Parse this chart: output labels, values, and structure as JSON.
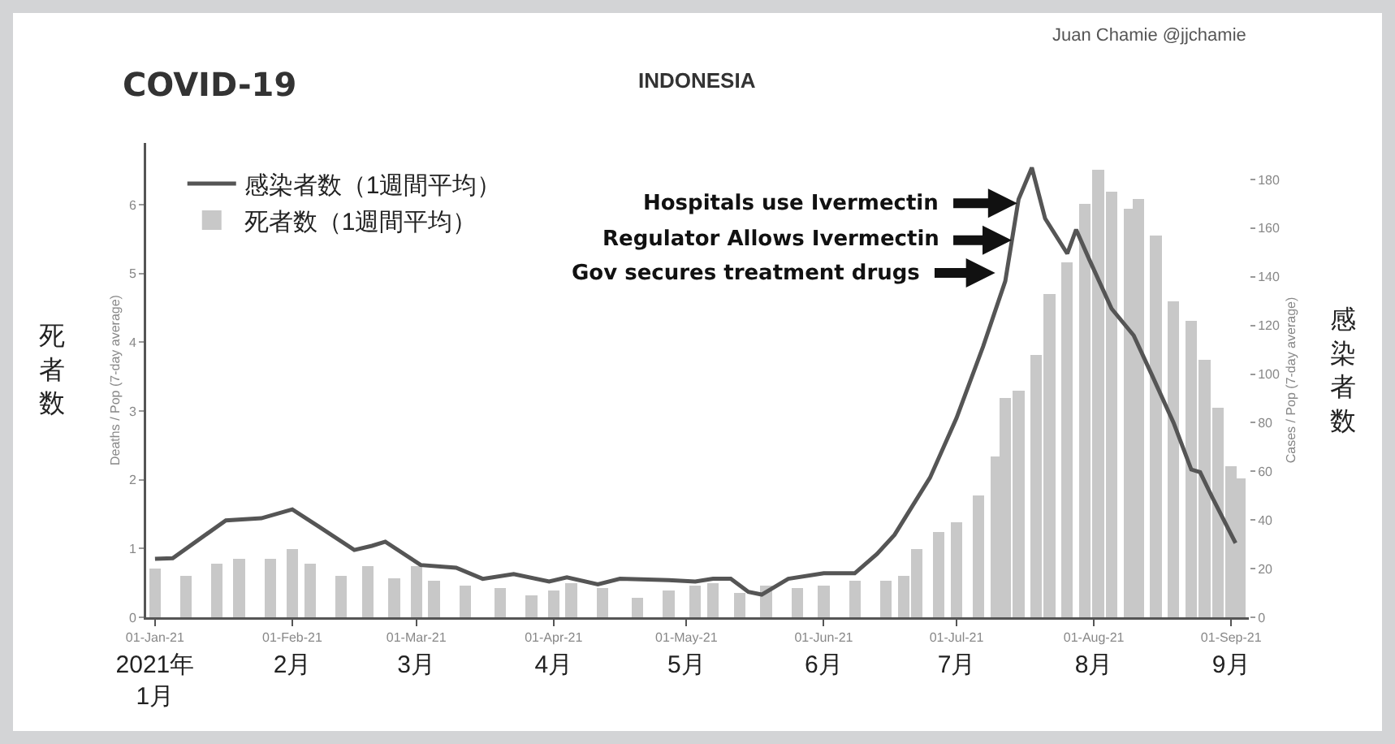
{
  "chart_data": {
    "type": "bar",
    "title": "COVID-19",
    "subtitle": "INDONESIA",
    "ylabel": "Deaths / Pop (7-day average)",
    "y2label": "Cases / Pop (7-day average)",
    "annotations": [
      "Juan Chamie @jjchamie",
      "死者数",
      "感染者数",
      "Hospitals use Ivermectin",
      "Regulator Allows Ivermectin",
      "Gov secures treatment drugs"
    ],
    "xlim": [
      "2020-12-30",
      "2021-09-05"
    ],
    "xticks": [
      {
        "value": "2021-01-01",
        "label": "01-Jan-21"
      },
      {
        "value": "2021-02-01",
        "label": "01-Feb-21"
      },
      {
        "value": "2021-03-01",
        "label": "01-Mar-21"
      },
      {
        "value": "2021-04-01",
        "label": "01-Apr-21"
      },
      {
        "value": "2021-05-01",
        "label": "01-May-21"
      },
      {
        "value": "2021-06-01",
        "label": "01-Jun-21"
      },
      {
        "value": "2021-07-01",
        "label": "01-Jul-21"
      },
      {
        "value": "2021-08-01",
        "label": "01-Aug-21"
      },
      {
        "value": "2021-09-01",
        "label": "01-Sep-21"
      }
    ],
    "x2lim": [
      "2020-12-30",
      "2021-09-05"
    ],
    "x2ticks": [
      {
        "value": "2021-01-01",
        "label": "2021年\n1月"
      },
      {
        "value": "2021-02-01",
        "label": "2月"
      },
      {
        "value": "2021-03-01",
        "label": "3月"
      },
      {
        "value": "2021-04-01",
        "label": "4月"
      },
      {
        "value": "2021-05-01",
        "label": "5月"
      },
      {
        "value": "2021-06-01",
        "label": "6月"
      },
      {
        "value": "2021-07-01",
        "label": "7月"
      },
      {
        "value": "2021-08-01",
        "label": "8月"
      },
      {
        "value": "2021-09-01",
        "label": "9月"
      }
    ],
    "ylim": [
      0,
      6.9
    ],
    "yticks": [
      0,
      1,
      2,
      3,
      4,
      5,
      6
    ],
    "y2lim": [
      0,
      195
    ],
    "y2ticks": [
      0,
      20,
      40,
      60,
      80,
      100,
      120,
      140,
      160,
      180
    ],
    "grid": false,
    "legend": "top left",
    "series": [
      {
        "type": "line",
        "name": "感染者数（1週間平均）",
        "color": "#555555",
        "x": [
          "2021-01-01",
          "2021-01-05",
          "2021-01-17",
          "2021-01-25",
          "2021-02-01",
          "2021-02-07",
          "2021-02-15",
          "2021-02-19",
          "2021-02-22",
          "2021-03-02",
          "2021-03-10",
          "2021-03-16",
          "2021-03-23",
          "2021-03-31",
          "2021-04-04",
          "2021-04-11",
          "2021-04-16",
          "2021-04-27",
          "2021-05-03",
          "2021-05-07",
          "2021-05-11",
          "2021-05-15",
          "2021-05-18",
          "2021-05-24",
          "2021-06-01",
          "2021-06-08",
          "2021-06-13",
          "2021-06-17",
          "2021-06-25",
          "2021-07-01",
          "2021-07-07",
          "2021-07-12",
          "2021-07-15",
          "2021-07-18",
          "2021-07-21",
          "2021-07-26",
          "2021-07-28",
          "2021-07-31",
          "2021-08-05",
          "2021-08-10",
          "2021-08-14",
          "2021-08-19",
          "2021-08-23",
          "2021-08-25",
          "2021-08-28",
          "2021-09-02"
        ],
        "values": [
          0.85,
          0.86,
          1.41,
          1.44,
          1.57,
          1.32,
          0.98,
          1.04,
          1.1,
          0.76,
          0.72,
          0.56,
          0.63,
          0.52,
          0.58,
          0.48,
          0.56,
          0.54,
          0.52,
          0.56,
          0.56,
          0.37,
          0.33,
          0.56,
          0.64,
          0.64,
          0.92,
          1.2,
          2.03,
          2.9,
          3.94,
          4.89,
          6.08,
          6.54,
          5.8,
          5.29,
          5.64,
          5.2,
          4.49,
          4.1,
          3.54,
          2.83,
          2.15,
          2.11,
          1.71,
          1.08
        ]
      },
      {
        "name": "死者数（1週間平均）",
        "color": "#c8c8c8",
        "axis": "y2",
        "x": [
          "2021-01-01",
          "2021-01-08",
          "2021-01-15",
          "2021-01-20",
          "2021-01-27",
          "2021-02-01",
          "2021-02-05",
          "2021-02-12",
          "2021-02-18",
          "2021-02-24",
          "2021-03-01",
          "2021-03-05",
          "2021-03-12",
          "2021-03-20",
          "2021-03-27",
          "2021-04-01",
          "2021-04-05",
          "2021-04-12",
          "2021-04-20",
          "2021-04-27",
          "2021-05-03",
          "2021-05-07",
          "2021-05-13",
          "2021-05-19",
          "2021-05-26",
          "2021-06-01",
          "2021-06-08",
          "2021-06-15",
          "2021-06-19",
          "2021-06-22",
          "2021-06-27",
          "2021-07-01",
          "2021-07-06",
          "2021-07-10",
          "2021-07-12",
          "2021-07-15",
          "2021-07-19",
          "2021-07-22",
          "2021-07-26",
          "2021-07-30",
          "2021-08-02",
          "2021-08-05",
          "2021-08-09",
          "2021-08-11",
          "2021-08-15",
          "2021-08-19",
          "2021-08-23",
          "2021-08-26",
          "2021-08-29",
          "2021-09-01",
          "2021-09-03"
        ],
        "values": [
          20,
          17,
          22,
          24,
          24,
          28,
          22,
          17,
          21,
          16,
          21,
          15,
          13,
          12,
          9,
          11,
          14,
          12,
          8,
          11,
          13,
          14,
          10,
          13,
          12,
          13,
          15,
          15,
          17,
          28,
          35,
          39,
          50,
          66,
          90,
          93,
          108,
          133,
          146,
          170,
          184,
          175,
          168,
          172,
          157,
          130,
          122,
          106,
          86,
          62,
          57
        ]
      }
    ]
  }
}
